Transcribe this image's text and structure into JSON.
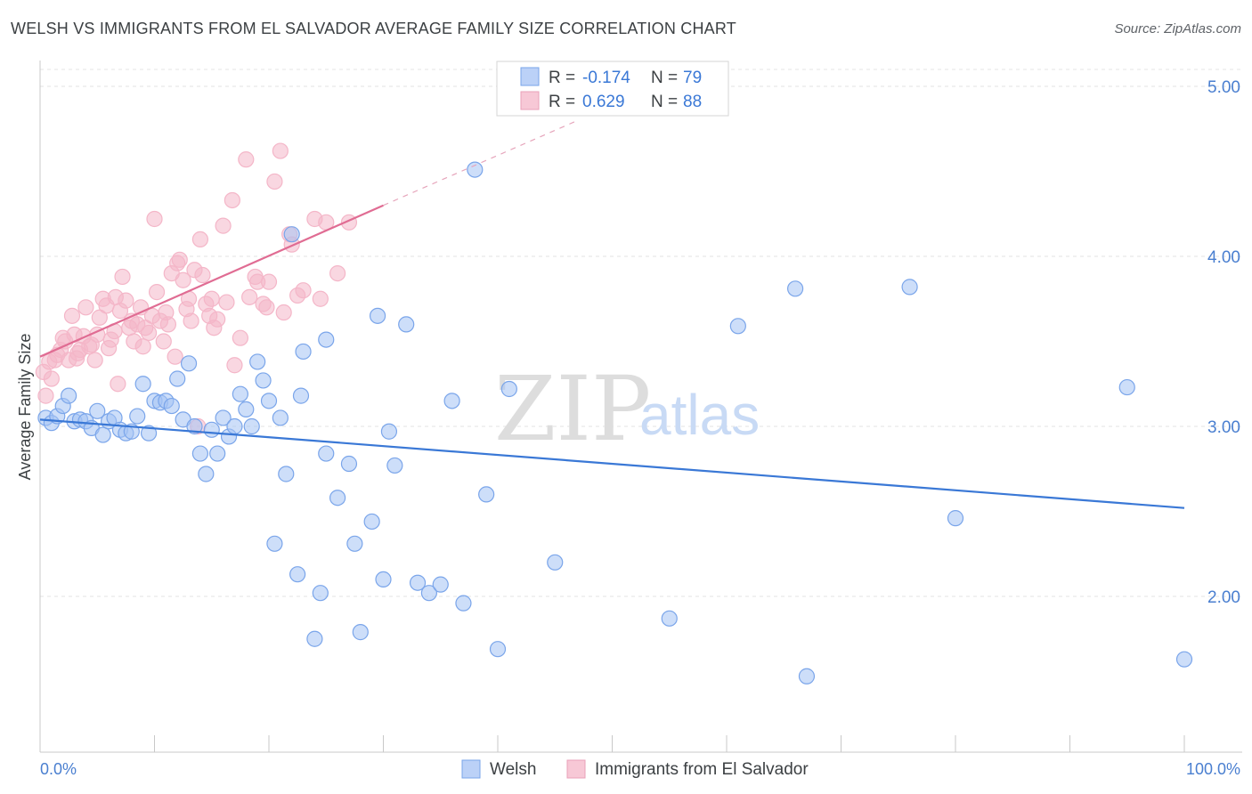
{
  "header": {
    "title": "WELSH VS IMMIGRANTS FROM EL SALVADOR AVERAGE FAMILY SIZE CORRELATION CHART",
    "source": "Source: ZipAtlas.com"
  },
  "watermark": {
    "zip": "ZIP",
    "atlas": "atlas"
  },
  "legend_box": {
    "rows": [
      {
        "r_label": "R = ",
        "r_value": "-0.174",
        "n_label": "N = ",
        "n_value": "79",
        "color": "#a4c2f4"
      },
      {
        "r_label": "R = ",
        "r_value": "0.629",
        "n_label": "N = ",
        "n_value": "88",
        "color": "#f4b6c8"
      }
    ]
  },
  "chart_data": {
    "type": "scatter",
    "title": "WELSH VS IMMIGRANTS FROM EL SALVADOR AVERAGE FAMILY SIZE CORRELATION CHART",
    "xlabel": "",
    "ylabel": "Average Family Size",
    "xlim": [
      0,
      100
    ],
    "ylim": [
      1.0,
      5.1
    ],
    "x_tick_labels": [
      "0.0%",
      "100.0%"
    ],
    "y_ticks": [
      2.0,
      3.0,
      4.0,
      5.0
    ],
    "y_tick_labels": [
      "2.00",
      "3.00",
      "4.00",
      "5.00"
    ],
    "grid": "horizontal dashed",
    "legend_position": "bottom",
    "series": [
      {
        "name": "Welsh",
        "color": "#4a86e8",
        "fill": "#a4c2f4",
        "r": -0.174,
        "n": 79,
        "trend": {
          "x0": 0,
          "y0": 3.04,
          "x1": 100,
          "y1": 2.52,
          "dashed_from": null
        },
        "points": [
          [
            0.5,
            3.05
          ],
          [
            1,
            3.02
          ],
          [
            1.5,
            3.06
          ],
          [
            2,
            3.12
          ],
          [
            2.5,
            3.18
          ],
          [
            3,
            3.03
          ],
          [
            3.5,
            3.04
          ],
          [
            4,
            3.03
          ],
          [
            4.5,
            2.99
          ],
          [
            5,
            3.09
          ],
          [
            5.5,
            2.95
          ],
          [
            6,
            3.03
          ],
          [
            6.5,
            3.05
          ],
          [
            7,
            2.98
          ],
          [
            7.5,
            2.96
          ],
          [
            8,
            2.97
          ],
          [
            8.5,
            3.06
          ],
          [
            9,
            3.25
          ],
          [
            9.5,
            2.96
          ],
          [
            10,
            3.15
          ],
          [
            10.5,
            3.14
          ],
          [
            11,
            3.15
          ],
          [
            11.5,
            3.12
          ],
          [
            12,
            3.28
          ],
          [
            12.5,
            3.04
          ],
          [
            13,
            3.37
          ],
          [
            13.5,
            3.0
          ],
          [
            14,
            2.84
          ],
          [
            14.5,
            2.72
          ],
          [
            15,
            2.98
          ],
          [
            15.5,
            2.84
          ],
          [
            16,
            3.05
          ],
          [
            16.5,
            2.94
          ],
          [
            17,
            3.0
          ],
          [
            17.5,
            3.19
          ],
          [
            18,
            3.1
          ],
          [
            18.5,
            3.0
          ],
          [
            19,
            3.38
          ],
          [
            19.5,
            3.27
          ],
          [
            20,
            3.15
          ],
          [
            20.5,
            2.31
          ],
          [
            21,
            3.05
          ],
          [
            21.5,
            2.72
          ],
          [
            22,
            4.13
          ],
          [
            22.5,
            2.13
          ],
          [
            22.8,
            3.18
          ],
          [
            23,
            3.44
          ],
          [
            24,
            1.75
          ],
          [
            24.5,
            2.02
          ],
          [
            25,
            3.51
          ],
          [
            25,
            2.84
          ],
          [
            26,
            2.58
          ],
          [
            27,
            2.78
          ],
          [
            27.5,
            2.31
          ],
          [
            28,
            1.79
          ],
          [
            29,
            2.44
          ],
          [
            29.5,
            3.65
          ],
          [
            30,
            2.1
          ],
          [
            30.5,
            2.97
          ],
          [
            31,
            2.77
          ],
          [
            32,
            3.6
          ],
          [
            33,
            2.08
          ],
          [
            34,
            2.02
          ],
          [
            35,
            2.07
          ],
          [
            36,
            3.15
          ],
          [
            37,
            1.96
          ],
          [
            38,
            4.51
          ],
          [
            39,
            2.6
          ],
          [
            40,
            1.69
          ],
          [
            41,
            3.22
          ],
          [
            45,
            2.2
          ],
          [
            47,
            5.0
          ],
          [
            55,
            1.87
          ],
          [
            61,
            3.59
          ],
          [
            66,
            3.81
          ],
          [
            67,
            1.53
          ],
          [
            76,
            3.82
          ],
          [
            80,
            2.46
          ],
          [
            95,
            3.23
          ],
          [
            100,
            1.63
          ]
        ]
      },
      {
        "name": "Immigrants from El Salvador",
        "color": "#e06c93",
        "fill": "#f4b6c8",
        "r": 0.629,
        "n": 88,
        "trend": {
          "x0": 0,
          "y0": 3.41,
          "x1": 30,
          "y1": 4.3,
          "dashed_to_x": 47,
          "dashed_to_y": 4.8
        },
        "points": [
          [
            0.3,
            3.32
          ],
          [
            0.5,
            3.18
          ],
          [
            0.8,
            3.38
          ],
          [
            1,
            3.28
          ],
          [
            1.3,
            3.39
          ],
          [
            1.5,
            3.42
          ],
          [
            1.8,
            3.45
          ],
          [
            2,
            3.52
          ],
          [
            2.2,
            3.5
          ],
          [
            2.5,
            3.39
          ],
          [
            2.8,
            3.65
          ],
          [
            3,
            3.54
          ],
          [
            3.2,
            3.4
          ],
          [
            3.5,
            3.45
          ],
          [
            3.8,
            3.53
          ],
          [
            4,
            3.7
          ],
          [
            4.3,
            3.47
          ],
          [
            4.5,
            3.48
          ],
          [
            4.8,
            3.39
          ],
          [
            5,
            3.54
          ],
          [
            5.2,
            3.64
          ],
          [
            5.5,
            3.75
          ],
          [
            5.8,
            3.71
          ],
          [
            6,
            3.46
          ],
          [
            6.2,
            3.51
          ],
          [
            6.5,
            3.56
          ],
          [
            6.8,
            3.25
          ],
          [
            7,
            3.68
          ],
          [
            7.2,
            3.88
          ],
          [
            7.5,
            3.74
          ],
          [
            7.8,
            3.58
          ],
          [
            8,
            3.62
          ],
          [
            8.2,
            3.5
          ],
          [
            8.5,
            3.6
          ],
          [
            8.8,
            3.7
          ],
          [
            9,
            3.47
          ],
          [
            9.2,
            3.58
          ],
          [
            9.5,
            3.55
          ],
          [
            9.8,
            3.65
          ],
          [
            10,
            4.22
          ],
          [
            10.2,
            3.79
          ],
          [
            10.5,
            3.62
          ],
          [
            10.8,
            3.5
          ],
          [
            11,
            3.67
          ],
          [
            11.2,
            3.6
          ],
          [
            11.5,
            3.9
          ],
          [
            11.8,
            3.41
          ],
          [
            12,
            3.96
          ],
          [
            12.2,
            3.98
          ],
          [
            12.5,
            3.86
          ],
          [
            12.8,
            3.69
          ],
          [
            13,
            3.75
          ],
          [
            13.2,
            3.62
          ],
          [
            13.5,
            3.92
          ],
          [
            13.8,
            3.0
          ],
          [
            14,
            4.1
          ],
          [
            14.2,
            3.89
          ],
          [
            14.5,
            3.72
          ],
          [
            14.8,
            3.65
          ],
          [
            15,
            3.75
          ],
          [
            15.2,
            3.58
          ],
          [
            15.5,
            3.63
          ],
          [
            16,
            4.18
          ],
          [
            16.3,
            3.73
          ],
          [
            16.8,
            4.33
          ],
          [
            17,
            3.36
          ],
          [
            17.5,
            3.52
          ],
          [
            18,
            4.57
          ],
          [
            18.3,
            3.76
          ],
          [
            18.8,
            3.88
          ],
          [
            19,
            3.85
          ],
          [
            19.5,
            3.72
          ],
          [
            20,
            3.85
          ],
          [
            20.5,
            4.44
          ],
          [
            21,
            4.62
          ],
          [
            21.3,
            3.67
          ],
          [
            21.8,
            4.13
          ],
          [
            22,
            4.07
          ],
          [
            22.5,
            3.77
          ],
          [
            23,
            3.8
          ],
          [
            24,
            4.22
          ],
          [
            24.5,
            3.75
          ],
          [
            25,
            4.2
          ],
          [
            26,
            3.9
          ],
          [
            27,
            4.2
          ],
          [
            19.8,
            3.7
          ],
          [
            3.3,
            3.43
          ],
          [
            6.6,
            3.76
          ]
        ]
      }
    ]
  }
}
